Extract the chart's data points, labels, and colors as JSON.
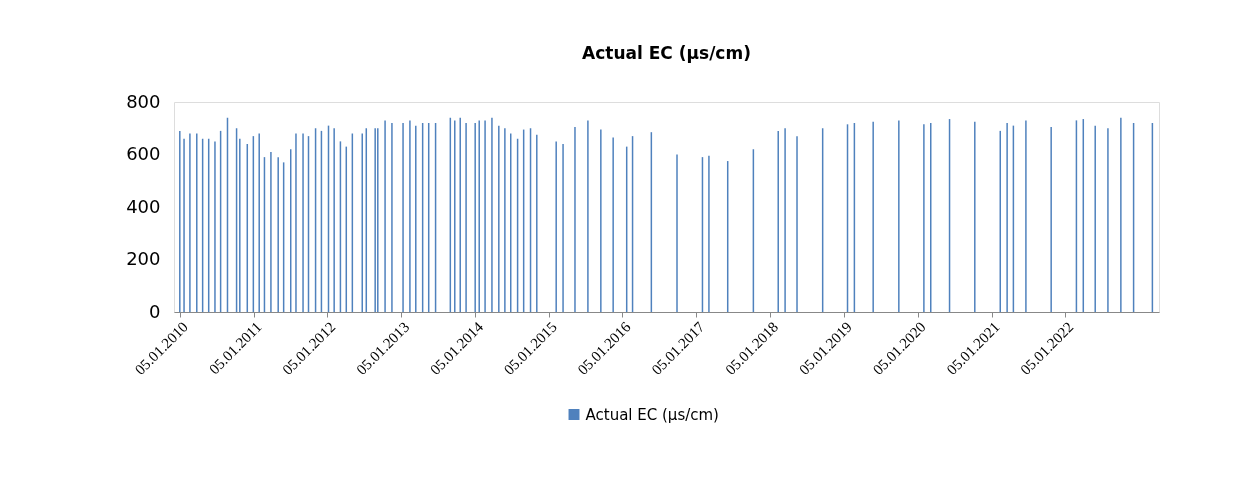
{
  "chart_data": {
    "type": "bar",
    "title": "Actual EC (µs/cm)",
    "x": [
      "2010-01-05",
      "2010-01-26",
      "2010-02-24",
      "2010-03-30",
      "2010-04-28",
      "2010-05-28",
      "2010-06-28",
      "2010-07-26",
      "2010-08-29",
      "2010-10-13",
      "2010-10-29",
      "2010-12-05",
      "2011-01-04",
      "2011-02-02",
      "2011-02-28",
      "2011-04-01",
      "2011-05-07",
      "2011-06-03",
      "2011-07-08",
      "2011-08-03",
      "2011-09-07",
      "2011-10-04",
      "2011-11-08",
      "2011-12-07",
      "2012-01-11",
      "2012-02-08",
      "2012-03-10",
      "2012-04-08",
      "2012-05-08",
      "2012-06-26",
      "2012-07-16",
      "2012-08-29",
      "2012-09-11",
      "2012-10-17",
      "2012-11-20",
      "2013-01-14",
      "2013-02-17",
      "2013-03-18",
      "2013-04-21",
      "2013-05-21",
      "2013-06-24",
      "2013-09-05",
      "2013-09-27",
      "2013-10-24",
      "2013-11-22",
      "2014-01-06",
      "2014-01-26",
      "2014-02-24",
      "2014-03-30",
      "2014-05-03",
      "2014-06-02",
      "2014-07-01",
      "2014-08-04",
      "2014-09-03",
      "2014-10-07",
      "2014-11-07",
      "2015-02-11",
      "2015-03-17",
      "2015-05-15",
      "2015-07-18",
      "2015-09-20",
      "2015-11-20",
      "2016-01-26",
      "2016-02-24",
      "2016-05-27",
      "2016-10-01",
      "2017-02-04",
      "2017-03-08",
      "2017-06-09",
      "2017-10-14",
      "2018-02-14",
      "2018-03-20",
      "2018-05-18",
      "2018-09-22",
      "2019-01-23",
      "2019-02-26",
      "2019-05-30",
      "2019-10-04",
      "2020-02-05",
      "2020-03-10",
      "2020-06-11",
      "2020-10-14",
      "2021-02-17",
      "2021-03-23",
      "2021-04-23",
      "2021-06-24",
      "2021-10-27",
      "2022-03-01",
      "2022-04-04",
      "2022-06-02",
      "2022-08-04",
      "2022-10-07",
      "2022-12-09",
      "2023-03-12"
    ],
    "series": [
      {
        "name": "Actual EC (µs/cm)",
        "color": "#4f81bd",
        "values": [
          690,
          660,
          680,
          680,
          660,
          660,
          650,
          690,
          740,
          700,
          660,
          640,
          670,
          680,
          590,
          610,
          590,
          570,
          620,
          680,
          680,
          670,
          700,
          690,
          710,
          700,
          650,
          630,
          680,
          680,
          700,
          700,
          700,
          730,
          720,
          720,
          730,
          710,
          720,
          720,
          720,
          740,
          730,
          740,
          720,
          720,
          730,
          730,
          740,
          710,
          700,
          680,
          660,
          695,
          700,
          675,
          650,
          640,
          705,
          730,
          695,
          665,
          630,
          670,
          685,
          600,
          590,
          595,
          575,
          620,
          690,
          700,
          670,
          700,
          715,
          720,
          725,
          730,
          715,
          720,
          735,
          725,
          690,
          720,
          710,
          730,
          705,
          730,
          735,
          710,
          700,
          740,
          720,
          720
        ]
      }
    ],
    "xlim": [
      "2010-01-01",
      "2023-03-20"
    ],
    "xticks": [
      {
        "value": "2010-01-05",
        "label": "05.01.2010"
      },
      {
        "value": "2011-01-05",
        "label": "05.01.2011"
      },
      {
        "value": "2012-01-05",
        "label": "05.01.2012"
      },
      {
        "value": "2013-01-05",
        "label": "05.01.2013"
      },
      {
        "value": "2014-01-05",
        "label": "05.01.2014"
      },
      {
        "value": "2015-01-05",
        "label": "05.01.2015"
      },
      {
        "value": "2016-01-05",
        "label": "05.01.2016"
      },
      {
        "value": "2017-01-05",
        "label": "05.01.2017"
      },
      {
        "value": "2018-01-05",
        "label": "05.01.2018"
      },
      {
        "value": "2019-01-05",
        "label": "05.01.2019"
      },
      {
        "value": "2020-01-05",
        "label": "05.01.2020"
      },
      {
        "value": "2021-01-05",
        "label": "05.01.2021"
      },
      {
        "value": "2022-01-05",
        "label": "05.01.2022"
      }
    ],
    "ylim": [
      0,
      800
    ],
    "yticks": [
      0,
      200,
      400,
      600,
      800
    ],
    "grid": false,
    "legend": "bottom"
  }
}
